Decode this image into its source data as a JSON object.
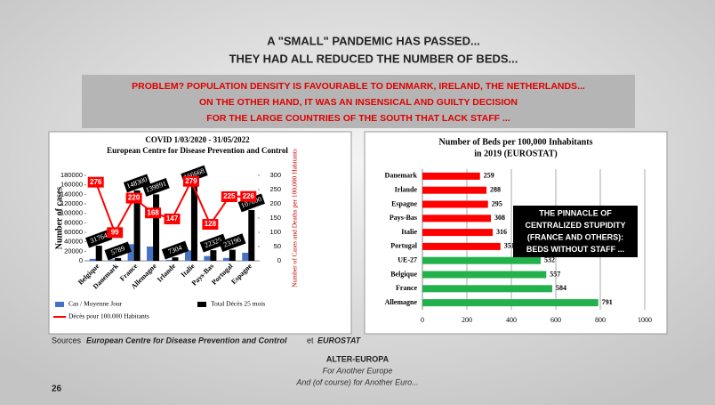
{
  "slide": {
    "title_lines": [
      "A \"SMALL\" PANDEMIC HAS PASSED...",
      "THEY HAD ALL REDUCED THE NUMBER OF BEDS..."
    ],
    "banner_lines": [
      "PROBLEM? POPULATION DENSITY IS FAVOURABLE TO DENMARK, IRELAND, THE NETHERLANDS...",
      "ON THE OTHER HAND, IT WAS AN INSENSICAL AND GUILTY DECISION",
      "FOR THE LARGE COUNTRIES OF THE SOUTH THAT LACK STAFF ..."
    ],
    "sources": [
      "Sources",
      "European Centre for Disease Prevention and Control",
      "et",
      "EUROSTAT"
    ],
    "footer": [
      "ALTER-EUROPA",
      "For Another Europe",
      "And (of course) for Another Euro..."
    ],
    "page_number": "26"
  },
  "chart_data": [
    {
      "type": "combo",
      "title": "COVID 1/03/2020 - 31/05/2022",
      "subtitle": "European Centre for Disease Prevention and Control",
      "ylabel": "Number of cases",
      "y2label": "Number of Cases and Deaths per 100,000 Habitants",
      "categories": [
        "Belgique",
        "Danemark",
        "France",
        "Allemagne",
        "Irlande",
        "Italie",
        "Pays-Bas",
        "Portugal",
        "Espagne"
      ],
      "series": [
        {
          "name": "Cas / Moyenne Jour",
          "color": "#4472c4",
          "values": [
            4000,
            3000,
            35000,
            30000,
            2000,
            22000,
            10000,
            6000,
            17000
          ]
        },
        {
          "name": "Total Décès 25 mois",
          "color": "#000000",
          "values": [
            31764,
            5789,
            148300,
            139891,
            7304,
            166668,
            22325,
            23196,
            107000
          ]
        },
        {
          "name": "Décès pour 100.000 Habitants",
          "color": "#ff0000",
          "axis": "y2",
          "values": [
            276,
            99,
            220,
            168,
            147,
            279,
            128,
            225,
            226
          ]
        }
      ],
      "ylim": [
        0,
        180000
      ],
      "yticks": [
        0,
        20000,
        40000,
        60000,
        80000,
        100000,
        120000,
        140000,
        160000,
        180000
      ],
      "y2lim": [
        0,
        300
      ],
      "y2ticks": [
        0,
        50,
        100,
        150,
        200,
        250,
        300
      ]
    },
    {
      "type": "hbar",
      "title": "Number of Beds per 100,000 Inhabitants",
      "subtitle": "in 2019 (EUROSTAT)",
      "categories": [
        "Danemark",
        "Irlande",
        "Espagne",
        "Pays-Bas",
        "Italie",
        "Portugal",
        "UE-27",
        "Belgique",
        "France",
        "Allemagne"
      ],
      "values": [
        259,
        288,
        295,
        308,
        316,
        351,
        532,
        557,
        584,
        791
      ],
      "colors": [
        "#ff0000",
        "#ff0000",
        "#ff0000",
        "#ff0000",
        "#ff0000",
        "#ff0000",
        "#22b14c",
        "#22b14c",
        "#22b14c",
        "#22b14c"
      ],
      "xlim": [
        0,
        1000
      ],
      "xticks": [
        0,
        200,
        400,
        600,
        800,
        1000
      ],
      "grid": true,
      "annotation": [
        "THE PINNACLE OF",
        "CENTRALIZED STUPIDITY",
        "(FRANCE AND OTHERS):",
        "BEDS WITHOUT STAFF ..."
      ]
    }
  ]
}
